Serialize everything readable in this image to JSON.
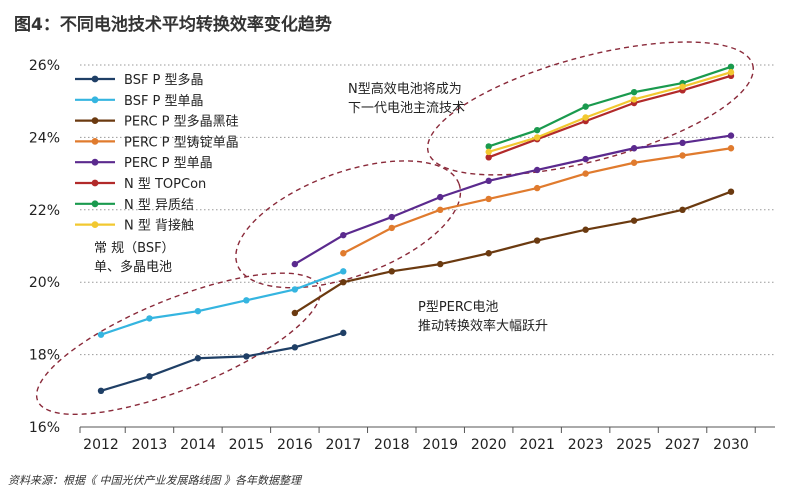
{
  "title": "图4：不同电池技术平均转换效率变化趋势",
  "source": "资料来源：根据《 中国光伏产业发展路线图 》各年数据整理",
  "chart_data": {
    "type": "line",
    "title": "图4：不同电池技术平均转换效率变化趋势",
    "xlabel": "",
    "ylabel": "",
    "ylim": [
      16,
      26
    ],
    "yticks": [
      16,
      18,
      20,
      22,
      24,
      26
    ],
    "ytick_labels": [
      "16%",
      "18%",
      "20%",
      "22%",
      "24%",
      "26%"
    ],
    "categories": [
      "2012",
      "2013",
      "2014",
      "2015",
      "2016",
      "2017",
      "2018",
      "2019",
      "2020",
      "2021",
      "2023",
      "2025",
      "2027",
      "2030"
    ],
    "grid": "horizontal dotted",
    "legend_position": "top-left",
    "series": [
      {
        "name": "BSF P 型多晶",
        "color": "#1f3f66",
        "values": [
          17.0,
          17.4,
          17.9,
          17.95,
          18.2,
          18.6,
          null,
          null,
          null,
          null,
          null,
          null,
          null,
          null
        ]
      },
      {
        "name": "BSF P 型单晶",
        "color": "#35b5e0",
        "values": [
          18.55,
          19.0,
          19.2,
          19.5,
          19.8,
          20.3,
          null,
          null,
          null,
          null,
          null,
          null,
          null,
          null
        ]
      },
      {
        "name": "PERC P 型多晶黑硅",
        "color": "#6b3a10",
        "values": [
          null,
          null,
          null,
          null,
          19.15,
          20.0,
          20.3,
          20.5,
          20.8,
          21.15,
          21.45,
          21.7,
          22.0,
          22.5
        ]
      },
      {
        "name": "PERC P 型铸锭单晶",
        "color": "#e07b2e",
        "values": [
          null,
          null,
          null,
          null,
          null,
          20.8,
          21.5,
          22.0,
          22.3,
          22.6,
          23.0,
          23.3,
          23.5,
          23.7
        ]
      },
      {
        "name": "PERC P 型单晶",
        "color": "#5b2a8e",
        "values": [
          null,
          null,
          null,
          null,
          20.5,
          21.3,
          21.8,
          22.35,
          22.8,
          23.1,
          23.4,
          23.7,
          23.85,
          24.05
        ]
      },
      {
        "name": "N 型 TOPCon",
        "color": "#b22a2a",
        "values": [
          null,
          null,
          null,
          null,
          null,
          null,
          null,
          null,
          23.45,
          23.95,
          24.45,
          24.95,
          25.3,
          25.7
        ]
      },
      {
        "name": "N 型 异质结",
        "color": "#1a9a4e",
        "values": [
          null,
          null,
          null,
          null,
          null,
          null,
          null,
          null,
          23.75,
          24.2,
          24.85,
          25.25,
          25.5,
          25.95
        ]
      },
      {
        "name": "N 型 背接触",
        "color": "#f2c830",
        "values": [
          null,
          null,
          null,
          null,
          null,
          null,
          null,
          null,
          23.6,
          24.0,
          24.55,
          25.05,
          25.4,
          25.8
        ]
      }
    ],
    "annotations": [
      {
        "lines": [
          "N型高效电池将成为",
          "下一代电池主流技术"
        ]
      },
      {
        "lines": [
          "常 规（BSF）",
          "单、多晶电池"
        ]
      },
      {
        "lines": [
          "P型PERC电池",
          "推动转换效率大幅跃升"
        ]
      }
    ]
  }
}
